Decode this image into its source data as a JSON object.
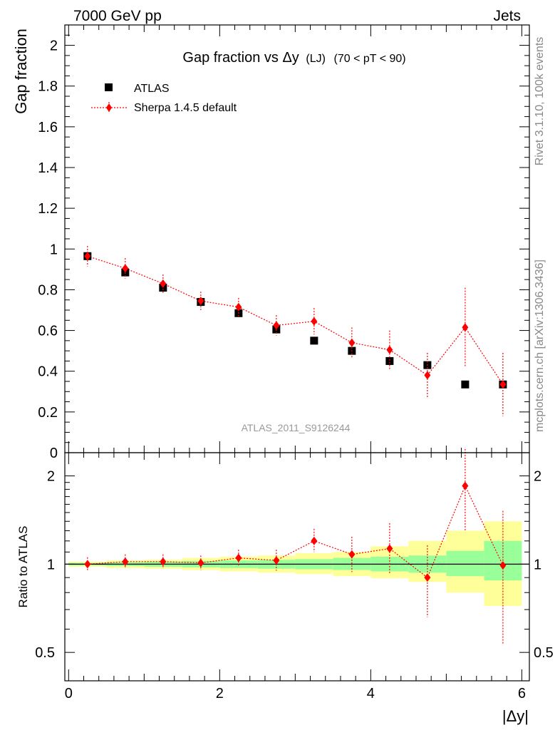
{
  "header": {
    "left": "7000 GeV pp",
    "right": "Jets"
  },
  "side_labels": {
    "rivet": "Rivet 3.1.10,  100k events",
    "mcplots": "mcplots.cern.ch [arXiv:1306.3436]"
  },
  "chart_data": [
    {
      "type": "scatter",
      "panel": "main",
      "title": "Gap fraction vs Δy",
      "title_suffix": "(LJ)",
      "title_range": "(70 < pT <  90)",
      "xlabel": "|Δy|",
      "ylabel": "Gap fraction",
      "xlim": [
        -0.05,
        6.1
      ],
      "ylim": [
        0,
        2.1
      ],
      "yticks": [
        0,
        0.2,
        0.4,
        0.6,
        0.8,
        1,
        1.2,
        1.4,
        1.6,
        1.8,
        2
      ],
      "ytick_labels": [
        "0",
        "0.2",
        "0.4",
        "0.6",
        "0.8",
        "1",
        "1.2",
        "1.4",
        "1.6",
        "1.8",
        "2"
      ],
      "watermark": "ATLAS_2011_S9126244",
      "legend": [
        "ATLAS",
        "Sherpa 1.4.5 default"
      ],
      "x": [
        0.25,
        0.75,
        1.25,
        1.75,
        2.25,
        2.75,
        3.25,
        3.75,
        4.25,
        4.75,
        5.25,
        5.75
      ],
      "series": [
        {
          "name": "ATLAS",
          "marker": "square",
          "color": "#000000",
          "values": [
            0.965,
            0.885,
            0.81,
            0.74,
            0.685,
            0.605,
            0.55,
            0.5,
            0.45,
            0.43,
            0.335,
            0.335
          ]
        },
        {
          "name": "Sherpa 1.4.5 default",
          "marker": "diamond",
          "color": "#ff0000",
          "line": "dotted",
          "values": [
            0.965,
            0.905,
            0.83,
            0.745,
            0.715,
            0.625,
            0.645,
            0.54,
            0.505,
            0.38,
            0.615,
            0.335
          ],
          "err": [
            0.05,
            0.05,
            0.045,
            0.045,
            0.045,
            0.05,
            0.065,
            0.075,
            0.095,
            0.11,
            0.195,
            0.155
          ]
        }
      ]
    },
    {
      "type": "scatter",
      "panel": "ratio",
      "ylabel": "Ratio to ATLAS",
      "xlabel": "|Δy|",
      "ylim": [
        0.4,
        2.4
      ],
      "yscale": "log",
      "yticks": [
        0.5,
        1,
        2
      ],
      "ytick_labels": [
        "0.5",
        "1",
        "2"
      ],
      "xticks": [
        0,
        2,
        4,
        6
      ],
      "xtick_labels": [
        "0",
        "2",
        "4",
        "6"
      ],
      "bands": {
        "x_edges": [
          0,
          0.5,
          1,
          1.5,
          2,
          2.5,
          3,
          3.5,
          4,
          4.5,
          5,
          5.5,
          6
        ],
        "inner": [
          [
            0.99,
            1.01
          ],
          [
            0.985,
            1.015
          ],
          [
            0.98,
            1.02
          ],
          [
            0.975,
            1.025
          ],
          [
            0.97,
            1.03
          ],
          [
            0.965,
            1.035
          ],
          [
            0.96,
            1.04
          ],
          [
            0.955,
            1.05
          ],
          [
            0.945,
            1.06
          ],
          [
            0.935,
            1.07
          ],
          [
            0.91,
            1.11
          ],
          [
            0.88,
            1.2
          ]
        ],
        "outer": [
          [
            0.98,
            1.02
          ],
          [
            0.97,
            1.03
          ],
          [
            0.965,
            1.035
          ],
          [
            0.955,
            1.05
          ],
          [
            0.945,
            1.06
          ],
          [
            0.935,
            1.07
          ],
          [
            0.925,
            1.09
          ],
          [
            0.91,
            1.1
          ],
          [
            0.895,
            1.15
          ],
          [
            0.87,
            1.2
          ],
          [
            0.8,
            1.3
          ],
          [
            0.72,
            1.4
          ]
        ],
        "inner_color": "#99ff99",
        "outer_color": "#ffff99"
      },
      "series": [
        {
          "name": "Sherpa 1.4.5 default",
          "color": "#ff0000",
          "values": [
            1.0,
            1.02,
            1.02,
            1.01,
            1.05,
            1.03,
            1.2,
            1.08,
            1.13,
            0.9,
            1.85,
            0.99
          ],
          "err_lo": [
            0.05,
            0.055,
            0.055,
            0.055,
            0.065,
            0.08,
            0.1,
            0.14,
            0.2,
            0.24,
            0.55,
            0.46
          ],
          "err_hi": [
            0.055,
            0.06,
            0.06,
            0.06,
            0.07,
            0.09,
            0.12,
            0.16,
            0.25,
            0.26,
            0.62,
            0.53
          ]
        }
      ]
    }
  ]
}
